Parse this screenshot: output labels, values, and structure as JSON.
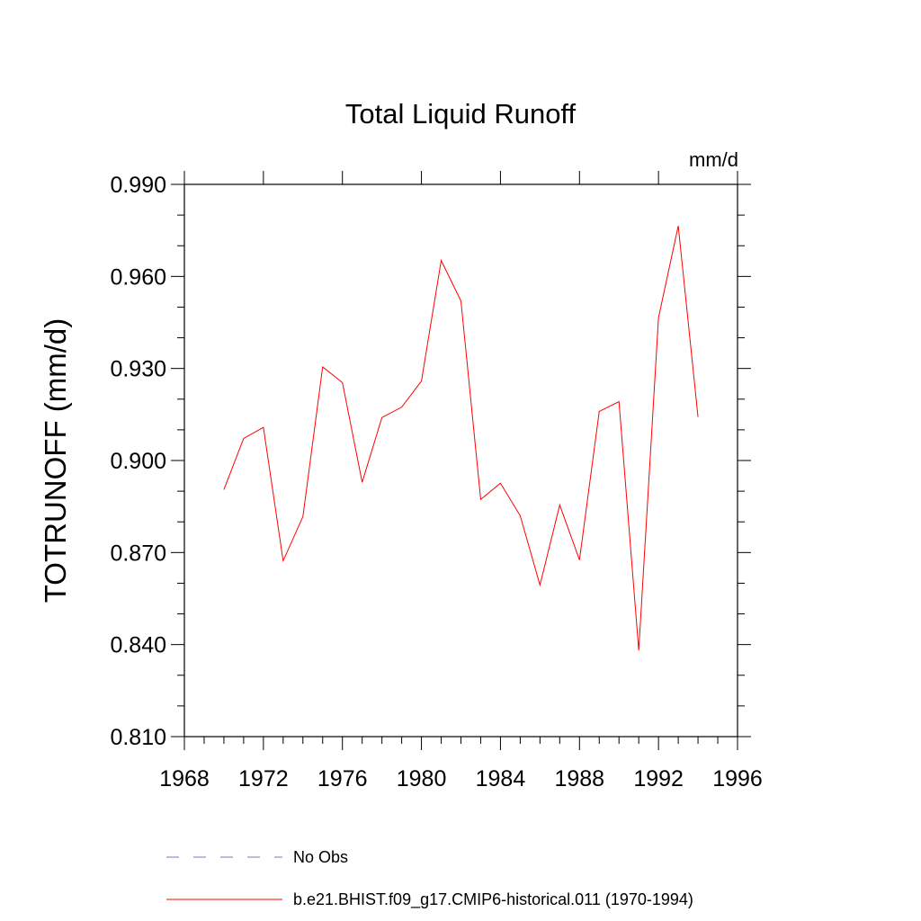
{
  "chart_data": {
    "type": "line",
    "title": "Total Liquid Runoff",
    "units": "mm/d",
    "ylabel": "TOTRUNOFF  (mm/d)",
    "xlabel": "",
    "xlim": [
      1968,
      1996
    ],
    "ylim": [
      0.81,
      0.99
    ],
    "x_ticks": [
      "1968",
      "1972",
      "1976",
      "1980",
      "1984",
      "1988",
      "1992",
      "1996"
    ],
    "y_ticks": [
      "0.810",
      "0.840",
      "0.870",
      "0.900",
      "0.930",
      "0.960",
      "0.990"
    ],
    "x": [
      1970,
      1971,
      1972,
      1973,
      1974,
      1975,
      1976,
      1977,
      1978,
      1979,
      1980,
      1981,
      1982,
      1983,
      1984,
      1985,
      1986,
      1987,
      1988,
      1989,
      1990,
      1991,
      1992,
      1993,
      1994
    ],
    "series": [
      {
        "name": "b.e21.BHIST.f09_g17.CMIP6-historical.011 (1970-1994)",
        "color": "#ff0000",
        "style": "solid",
        "values": [
          0.8905,
          0.9072,
          0.9108,
          0.8673,
          0.8817,
          0.9305,
          0.9254,
          0.8929,
          0.914,
          0.9174,
          0.9259,
          0.9652,
          0.952,
          0.8873,
          0.8926,
          0.882,
          0.8594,
          0.8855,
          0.8676,
          0.916,
          0.9192,
          0.8381,
          0.9465,
          0.9765,
          0.9142
        ]
      }
    ],
    "legend": [
      {
        "label": "No Obs",
        "color": "#7777bb",
        "style": "dashed"
      },
      {
        "label": "b.e21.BHIST.f09_g17.CMIP6-historical.011 (1970-1994)",
        "color": "#ff0000",
        "style": "solid"
      }
    ],
    "legend_position": "bottom"
  }
}
